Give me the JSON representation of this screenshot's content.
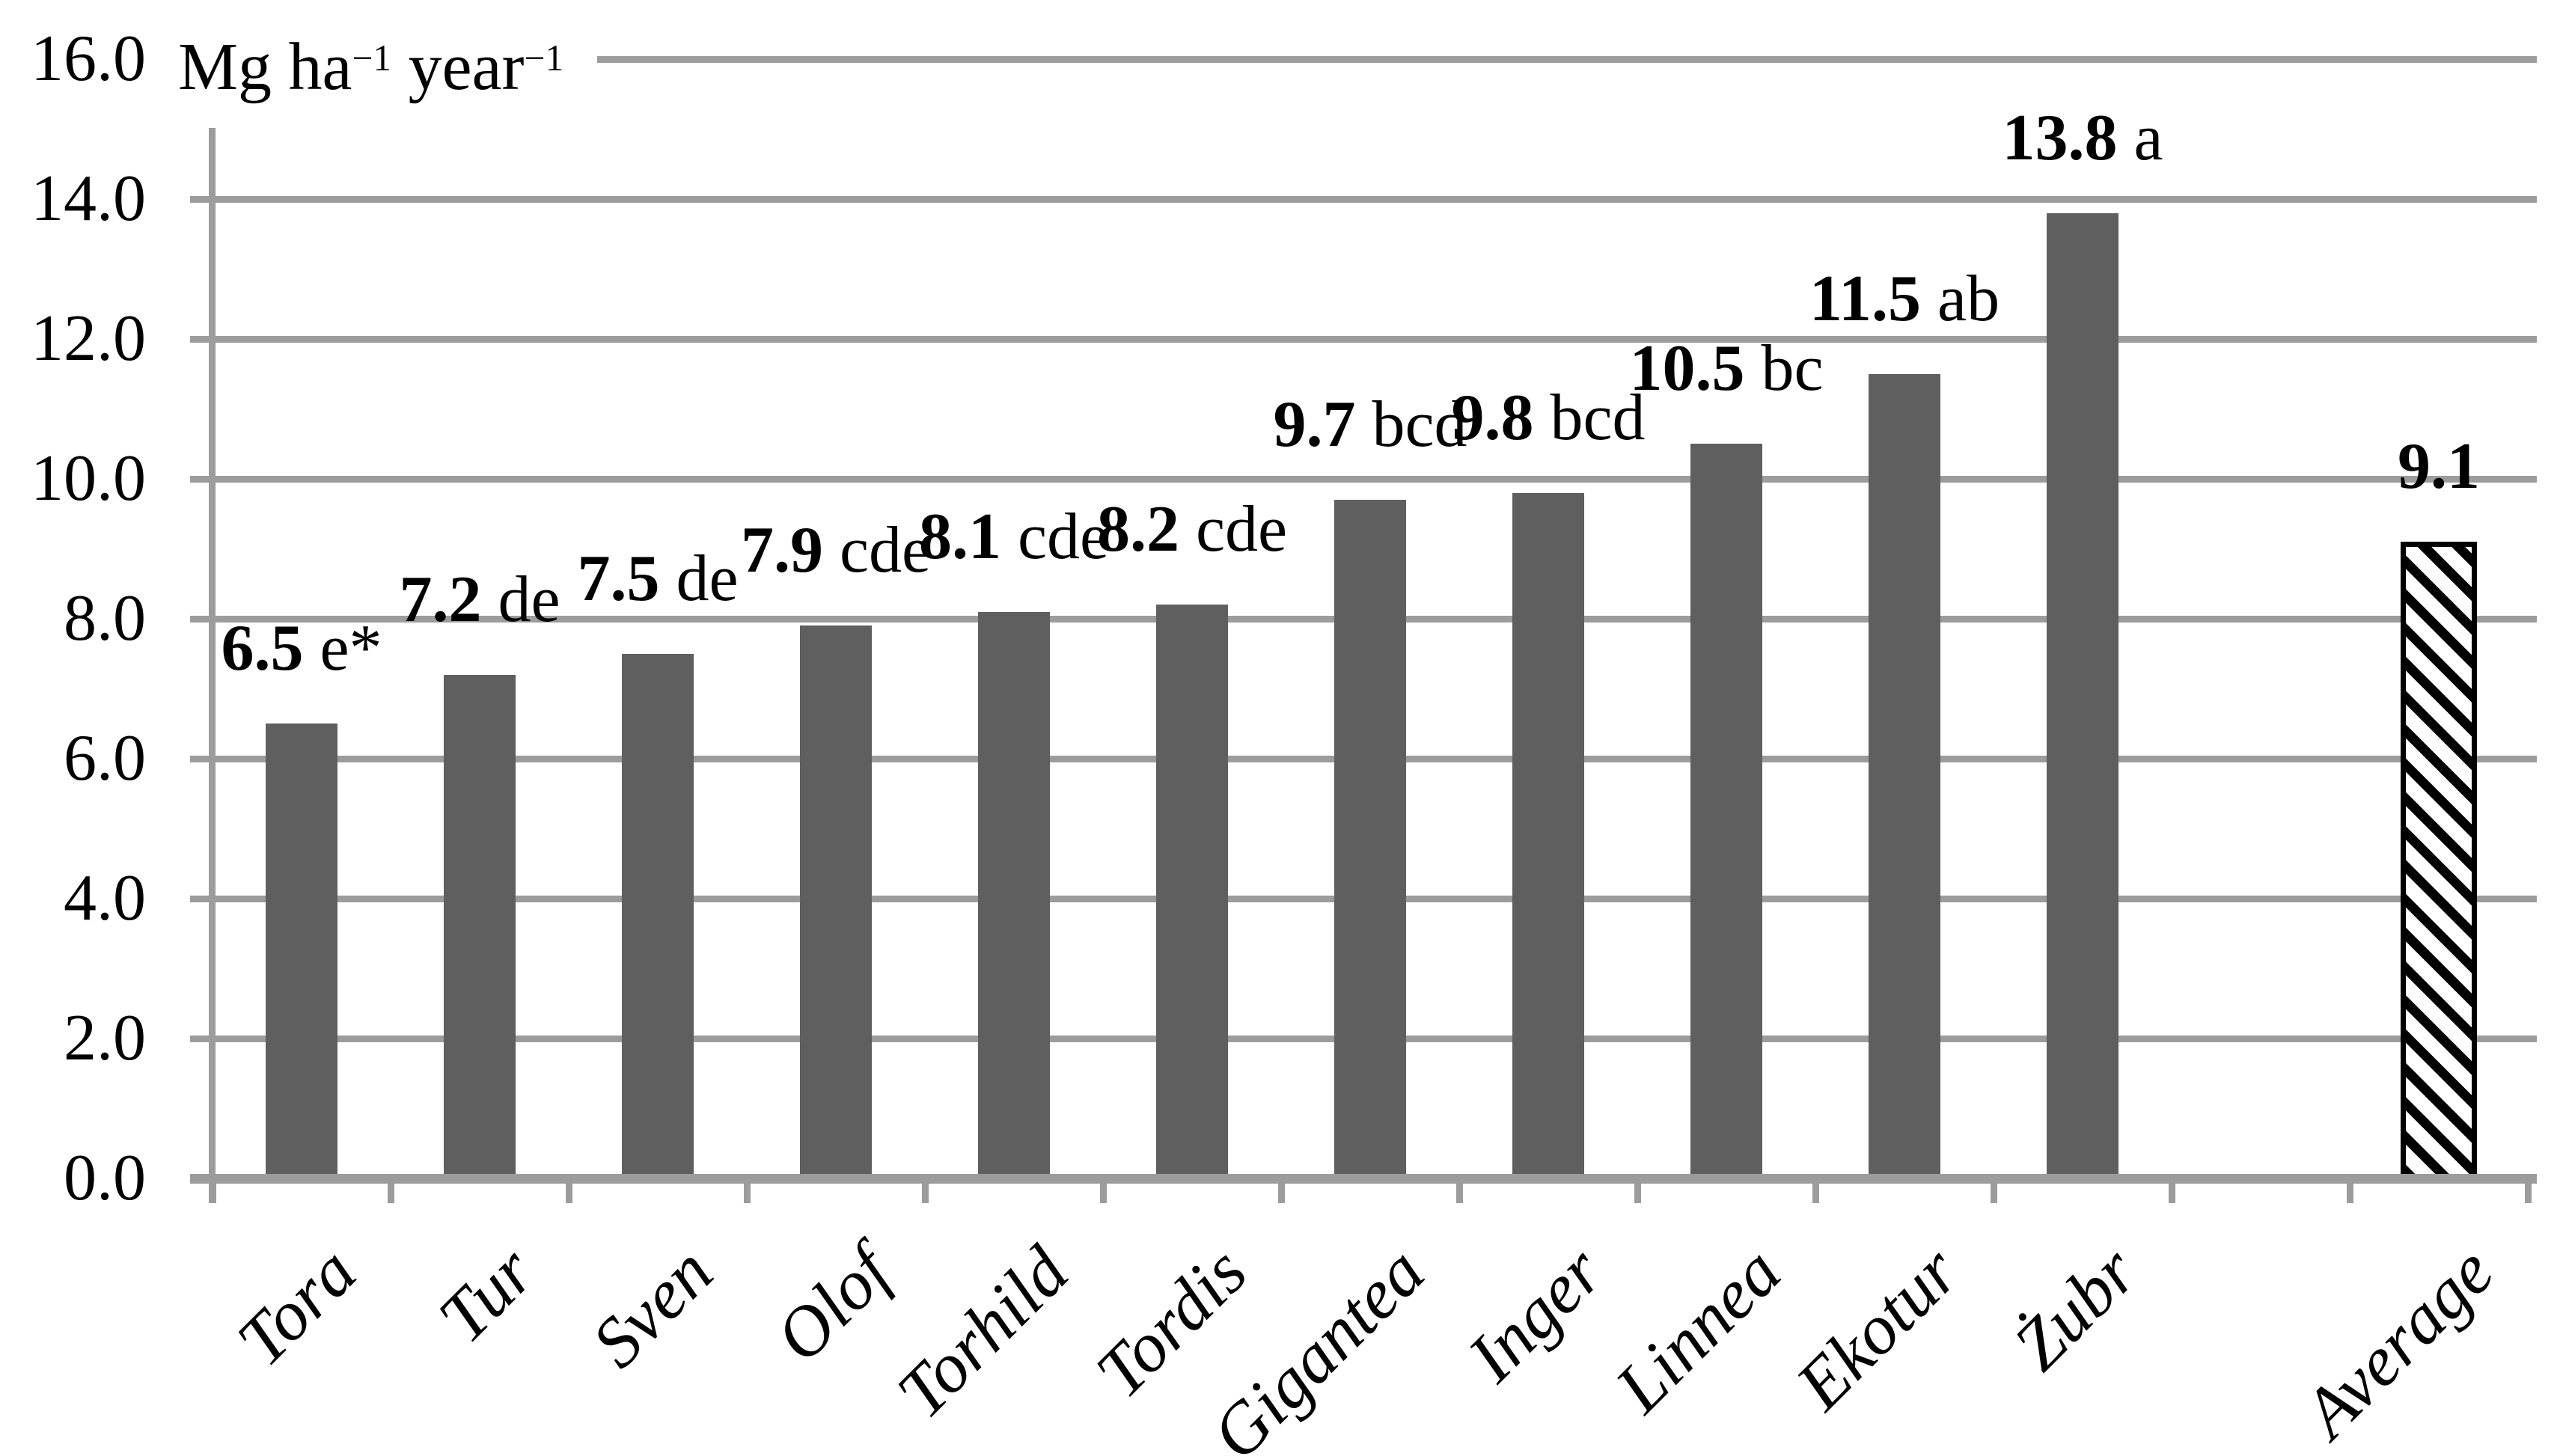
{
  "unit_label": {
    "base1": "Mg ha",
    "exp1": "−1",
    "base2": " year",
    "exp2": "−1"
  },
  "chart_data": {
    "type": "bar",
    "title": "",
    "ylabel": "Mg ha−1 year−1",
    "categories": [
      "Tora",
      "Tur",
      "Sven",
      "Olof",
      "Torhild",
      "Tordis",
      "Gigantea",
      "Inger",
      "Linnea",
      "Ekotur",
      "Żubr",
      "Average"
    ],
    "values": [
      6.5,
      7.2,
      7.5,
      7.9,
      8.1,
      8.2,
      9.7,
      9.8,
      10.5,
      11.5,
      13.8,
      9.1
    ],
    "value_labels": [
      "6.5",
      "7.2",
      "7.5",
      "7.9",
      "8.1",
      "8.2",
      "9.7",
      "9.8",
      "10.5",
      "11.5",
      "13.8",
      "9.1"
    ],
    "significance_letters": [
      "e*",
      "de",
      "de",
      "cde",
      "cde",
      "cde",
      "bcd",
      "bcd",
      "bc",
      "ab",
      "a",
      ""
    ],
    "ylim": [
      0,
      16
    ],
    "ytick_step": 2,
    "ytick_labels": [
      "0.0",
      "2.0",
      "4.0",
      "6.0",
      "8.0",
      "10.0",
      "12.0",
      "14.0",
      "16.0"
    ],
    "grid": true,
    "legend_position": "none",
    "bar_color": "#5f5f5f",
    "grid_color": "#9c9c9c",
    "text_color": "#000000",
    "average_bar_style": {
      "pattern": "downward-diagonal-hatch",
      "fill": "#ffffff",
      "stroke": "#000000"
    },
    "gap_slot_before_average": true,
    "x_label_rotation_deg": 45
  }
}
